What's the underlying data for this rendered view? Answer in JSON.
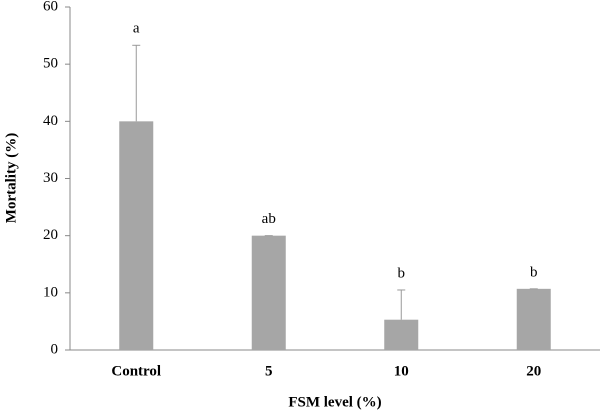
{
  "chart_data": {
    "type": "bar",
    "categories": [
      "Control",
      "5",
      "10",
      "20"
    ],
    "values": [
      40,
      20,
      5.3,
      10.7
    ],
    "errors": [
      13.3,
      0,
      5.2,
      0
    ],
    "letters": [
      "a",
      "ab",
      "b",
      "b"
    ],
    "color": "#a6a6a6",
    "xlabel": "FSM level (%)",
    "ylabel": "Mortality (%)",
    "ylim": [
      0,
      60
    ],
    "yticks": [
      0,
      10,
      20,
      30,
      40,
      50,
      60
    ],
    "grid": false
  }
}
